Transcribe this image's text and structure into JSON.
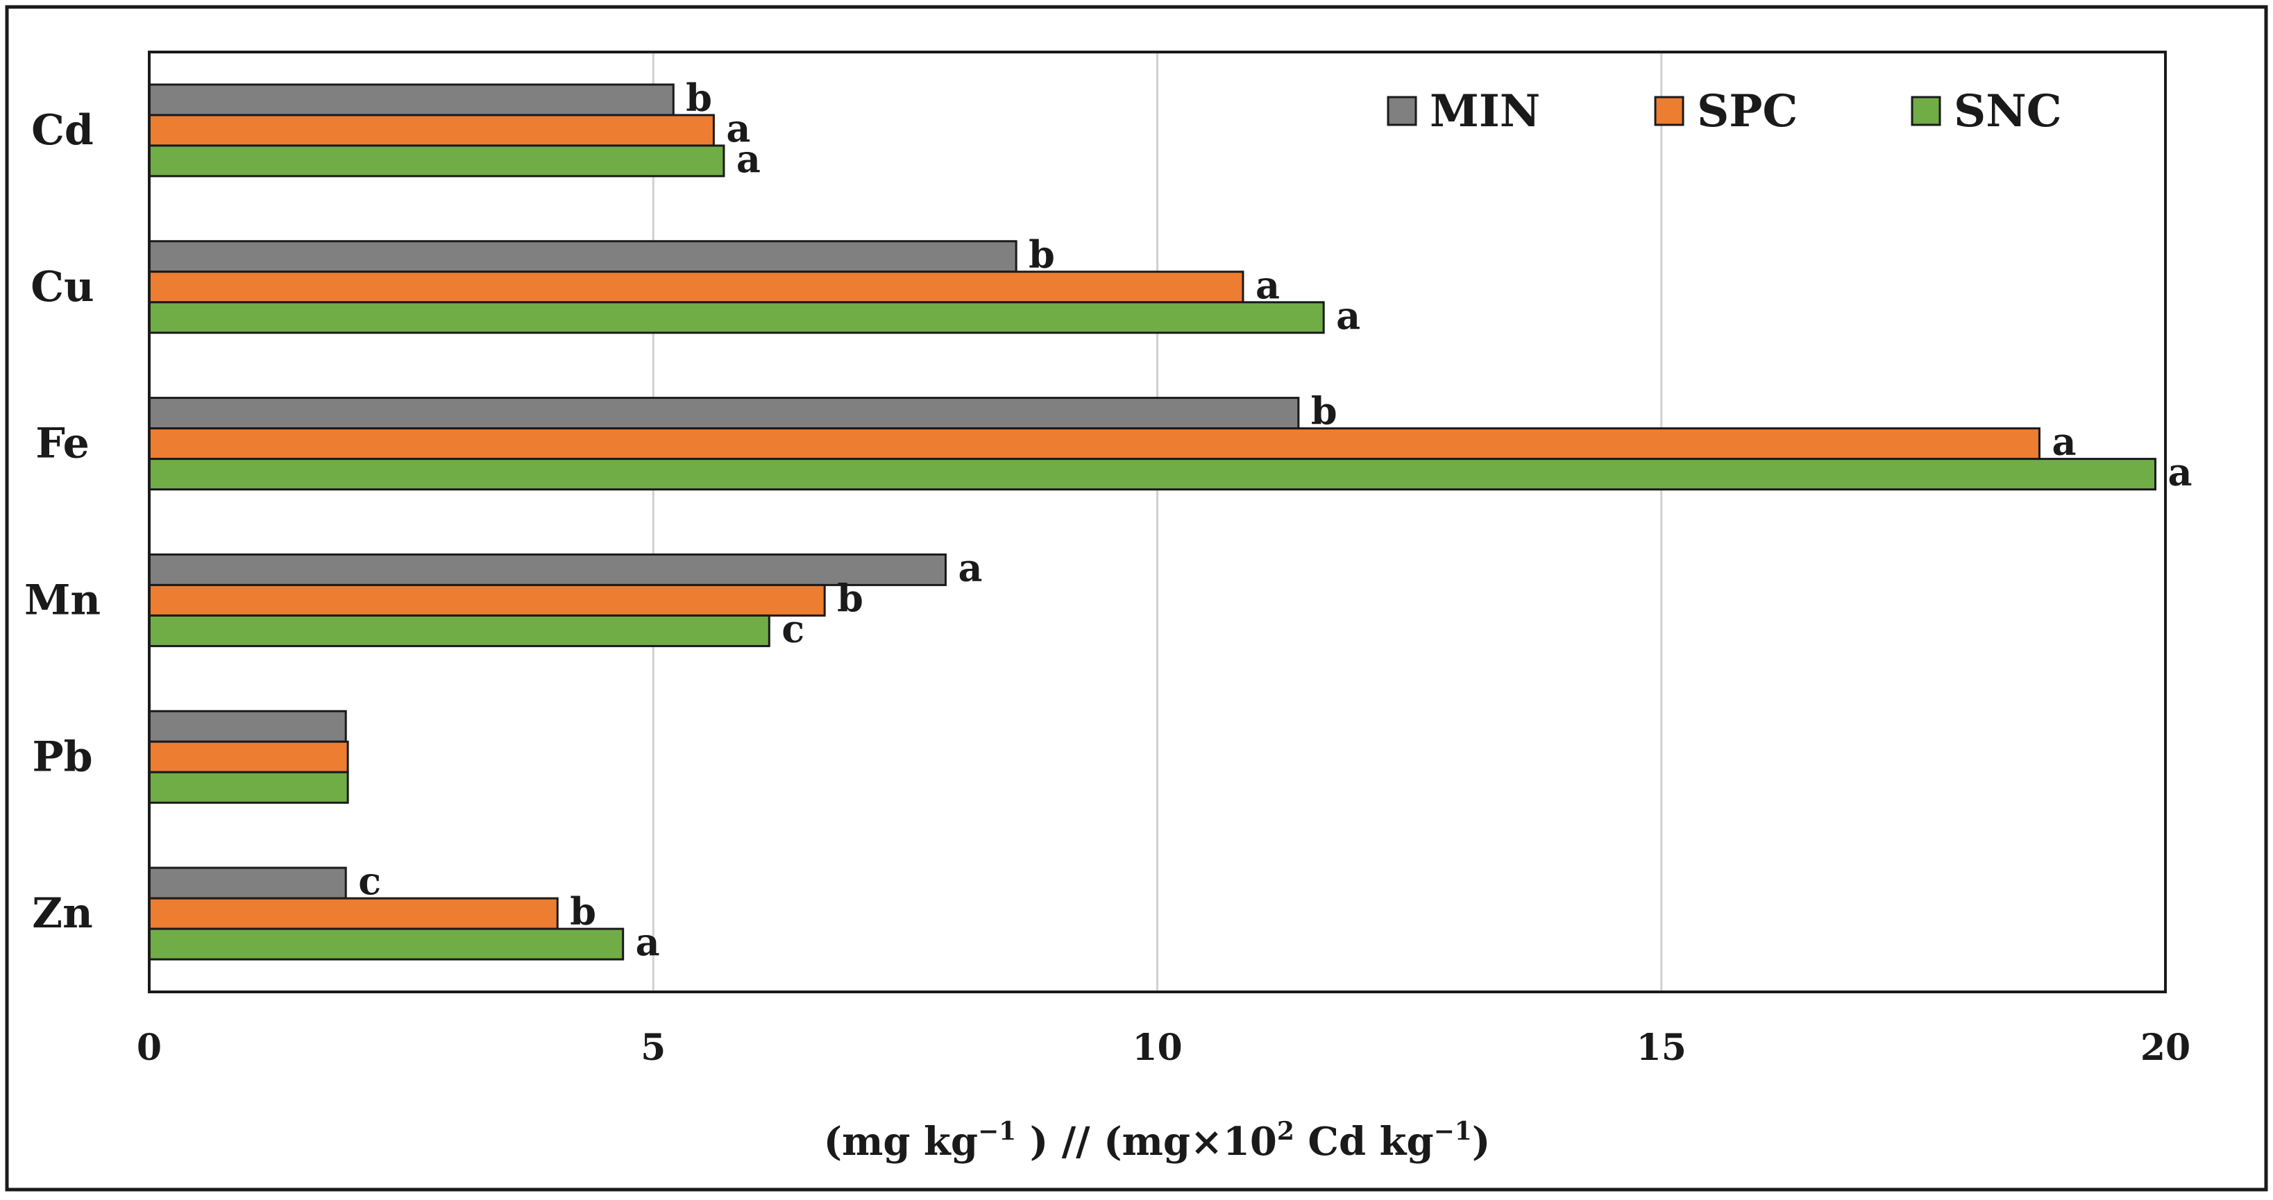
{
  "chart_data": {
    "type": "bar",
    "orientation": "horizontal",
    "title": "",
    "xlabel_main": "(mg  kg",
    "xlabel_sup1": "−1",
    "xlabel_mid": " ) // (mg×10",
    "xlabel_sup2": "2",
    "xlabel_end": " Cd kg",
    "xlabel_sup3": "−1",
    "xlabel_close": ")",
    "ylabel": "",
    "xlim": [
      0,
      20
    ],
    "xticks": [
      0,
      5,
      10,
      15,
      20
    ],
    "xtick_labels": [
      "0",
      "5",
      "10",
      "15",
      "20"
    ],
    "grid": true,
    "legend_position": "top-right",
    "categories": [
      "Cd",
      "Cu",
      "Fe",
      "Mn",
      "Pb",
      "Zn"
    ],
    "series": [
      {
        "name": "MIN",
        "color": "#808080",
        "values": [
          5.2,
          8.6,
          11.4,
          7.9,
          1.95,
          1.95
        ],
        "labels": [
          "b",
          "b",
          "b",
          "a",
          "",
          "c"
        ]
      },
      {
        "name": "SPC",
        "color": "#ed7d31",
        "values": [
          5.6,
          10.85,
          18.75,
          6.7,
          1.97,
          4.05
        ],
        "labels": [
          "a",
          "a",
          "a",
          "b",
          "",
          "b"
        ]
      },
      {
        "name": "SNC",
        "color": "#70ad47",
        "values": [
          5.7,
          11.65,
          19.9,
          6.15,
          1.97,
          4.7
        ],
        "labels": [
          "a",
          "a",
          "a",
          "c",
          "",
          "a"
        ]
      }
    ]
  }
}
